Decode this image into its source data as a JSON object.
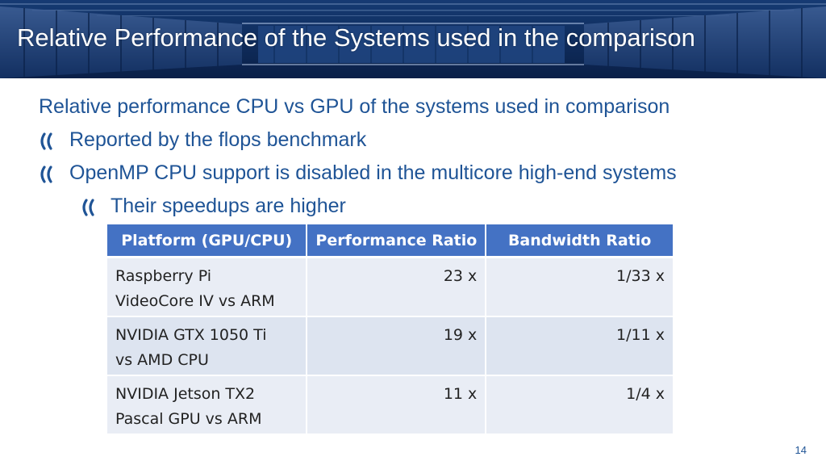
{
  "header": {
    "title": "Relative Performance of the Systems used in the comparison"
  },
  "body": {
    "lines": [
      {
        "level": 0,
        "bullet": "",
        "text": "Relative performance CPU vs GPU of the systems used in comparison"
      },
      {
        "level": 1,
        "bullet": "double-chevron-icon",
        "text": "Reported by the flops benchmark"
      },
      {
        "level": 1,
        "bullet": "double-chevron-icon",
        "text": "OpenMP CPU support is disabled in the multicore high-end systems"
      },
      {
        "level": 2,
        "bullet": "double-chevron-icon",
        "text": "Their speedups are higher"
      }
    ]
  },
  "table": {
    "headers": [
      "Platform (GPU/CPU)",
      "Performance Ratio",
      "Bandwidth Ratio"
    ],
    "rows": [
      {
        "platform_line1": "Raspberry Pi",
        "platform_line2": "VideoCore IV vs ARM",
        "performance": "23 x",
        "bandwidth": "1/33 x"
      },
      {
        "platform_line1": "NVIDIA GTX 1050 Ti",
        "platform_line2": "vs AMD CPU",
        "performance": "19 x",
        "bandwidth": "1/11 x"
      },
      {
        "platform_line1": "NVIDIA Jetson TX2",
        "platform_line2": "Pascal GPU vs ARM",
        "performance": "11 x",
        "bandwidth": "1/4 x"
      }
    ]
  },
  "footer": {
    "page_number": "14"
  },
  "colors": {
    "header_bg": "#163a72",
    "text_accent": "#1f5496",
    "table_header": "#4472c4",
    "table_row_a": "#e9edf5",
    "table_row_b": "#dde4f0"
  }
}
